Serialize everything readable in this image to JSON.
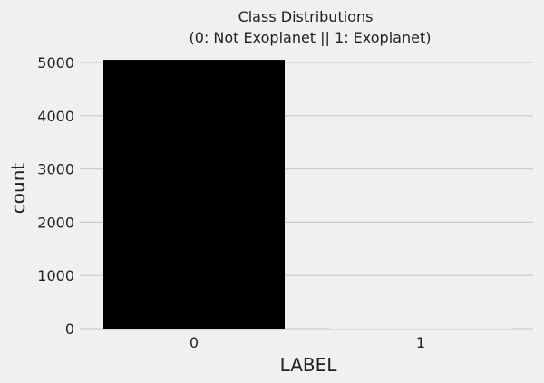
{
  "chart_data": {
    "type": "bar",
    "title": [
      "Class Distributions",
      "(0: Not Exoplanet || 1: Exoplanet)"
    ],
    "xlabel": "LABEL",
    "ylabel": "count",
    "categories": [
      "0",
      "1"
    ],
    "values": [
      5050,
      37
    ],
    "ylim": [
      0,
      5300
    ],
    "yticks": [
      0,
      1000,
      2000,
      3000,
      4000,
      5000
    ],
    "grid": "horizontal",
    "colors": {
      "background": "#f0f0f0",
      "grid": "#cbcbcb",
      "bars": [
        "#000000",
        "#f0f0f0"
      ]
    }
  }
}
